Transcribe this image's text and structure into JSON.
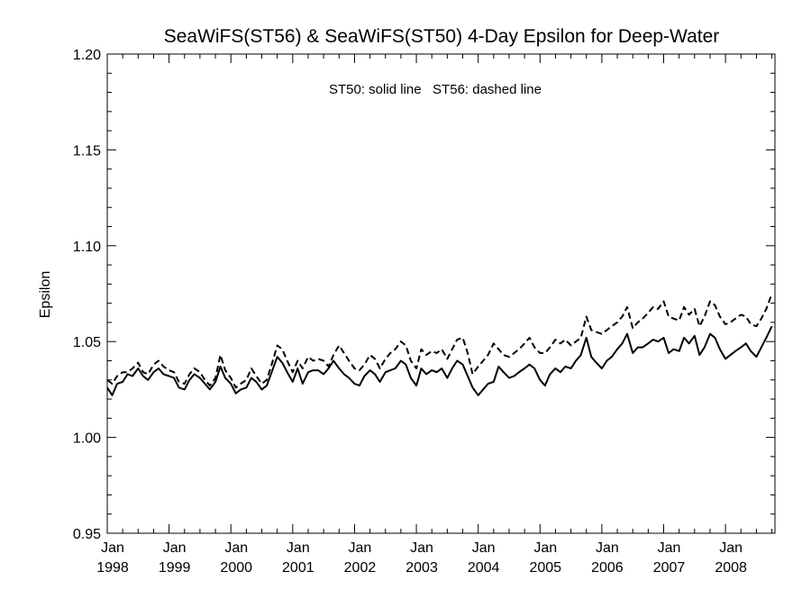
{
  "chart_data": {
    "type": "line",
    "title": "SeaWiFS(ST56) & SeaWiFS(ST50) 4-Day Epsilon for Deep-Water",
    "annotation": "ST50: solid line   ST56: dashed line",
    "xlabel": "",
    "ylabel": "Epsilon",
    "xlim": [
      1998.0,
      2008.8
    ],
    "ylim": [
      0.95,
      1.2
    ],
    "y_ticks": [
      "0.95",
      "1.00",
      "1.05",
      "1.10",
      "1.15",
      "1.20"
    ],
    "x_ticks": [
      {
        "month": "Jan",
        "year": "1998",
        "value": 1998.0
      },
      {
        "month": "Jan",
        "year": "1999",
        "value": 1999.0
      },
      {
        "month": "Jan",
        "year": "2000",
        "value": 2000.0
      },
      {
        "month": "Jan",
        "year": "2001",
        "value": 2001.0
      },
      {
        "month": "Jan",
        "year": "2002",
        "value": 2002.0
      },
      {
        "month": "Jan",
        "year": "2003",
        "value": 2003.0
      },
      {
        "month": "Jan",
        "year": "2004",
        "value": 2004.0
      },
      {
        "month": "Jan",
        "year": "2005",
        "value": 2005.0
      },
      {
        "month": "Jan",
        "year": "2006",
        "value": 2006.0
      },
      {
        "month": "Jan",
        "year": "2007",
        "value": 2007.0
      },
      {
        "month": "Jan",
        "year": "2008",
        "value": 2008.0
      }
    ],
    "series": [
      {
        "name": "ST50",
        "style": "solid",
        "x": [
          1998.0,
          1998.08,
          1998.16,
          1998.25,
          1998.33,
          1998.41,
          1998.5,
          1998.58,
          1998.66,
          1998.75,
          1998.83,
          1998.91,
          1999.0,
          1999.08,
          1999.16,
          1999.25,
          1999.33,
          1999.41,
          1999.5,
          1999.58,
          1999.66,
          1999.75,
          1999.83,
          1999.91,
          2000.0,
          2000.08,
          2000.16,
          2000.25,
          2000.33,
          2000.41,
          2000.5,
          2000.58,
          2000.66,
          2000.75,
          2000.83,
          2000.91,
          2001.0,
          2001.08,
          2001.16,
          2001.25,
          2001.33,
          2001.41,
          2001.5,
          2001.58,
          2001.66,
          2001.75,
          2001.83,
          2001.91,
          2002.0,
          2002.08,
          2002.16,
          2002.25,
          2002.33,
          2002.41,
          2002.5,
          2002.58,
          2002.66,
          2002.75,
          2002.83,
          2002.91,
          2003.0,
          2003.08,
          2003.16,
          2003.25,
          2003.33,
          2003.41,
          2003.5,
          2003.58,
          2003.66,
          2003.75,
          2003.83,
          2003.91,
          2004.0,
          2004.08,
          2004.16,
          2004.25,
          2004.33,
          2004.41,
          2004.5,
          2004.58,
          2004.66,
          2004.75,
          2004.83,
          2004.91,
          2005.0,
          2005.08,
          2005.16,
          2005.25,
          2005.33,
          2005.41,
          2005.5,
          2005.58,
          2005.66,
          2005.75,
          2005.83,
          2005.91,
          2006.0,
          2006.08,
          2006.16,
          2006.25,
          2006.33,
          2006.41,
          2006.5,
          2006.58,
          2006.66,
          2006.75,
          2006.83,
          2006.91,
          2007.0,
          2007.08,
          2007.16,
          2007.25,
          2007.33,
          2007.41,
          2007.5,
          2007.58,
          2007.66,
          2007.75,
          2007.83,
          2007.91,
          2008.0,
          2008.08,
          2008.16,
          2008.25,
          2008.33,
          2008.41,
          2008.5,
          2008.58,
          2008.66,
          2008.75
        ],
        "y": [
          1.026,
          1.022,
          1.028,
          1.029,
          1.033,
          1.032,
          1.036,
          1.032,
          1.03,
          1.034,
          1.036,
          1.033,
          1.032,
          1.031,
          1.026,
          1.025,
          1.03,
          1.033,
          1.031,
          1.028,
          1.025,
          1.029,
          1.037,
          1.031,
          1.028,
          1.023,
          1.025,
          1.026,
          1.031,
          1.029,
          1.025,
          1.027,
          1.034,
          1.042,
          1.039,
          1.034,
          1.029,
          1.036,
          1.028,
          1.034,
          1.035,
          1.035,
          1.033,
          1.036,
          1.04,
          1.036,
          1.033,
          1.031,
          1.028,
          1.027,
          1.032,
          1.035,
          1.033,
          1.029,
          1.034,
          1.035,
          1.036,
          1.04,
          1.038,
          1.031,
          1.027,
          1.036,
          1.033,
          1.035,
          1.034,
          1.036,
          1.031,
          1.036,
          1.04,
          1.038,
          1.032,
          1.026,
          1.022,
          1.025,
          1.028,
          1.029,
          1.037,
          1.034,
          1.031,
          1.032,
          1.034,
          1.036,
          1.038,
          1.036,
          1.03,
          1.027,
          1.033,
          1.036,
          1.034,
          1.037,
          1.036,
          1.04,
          1.043,
          1.052,
          1.042,
          1.039,
          1.036,
          1.04,
          1.042,
          1.046,
          1.049,
          1.054,
          1.044,
          1.047,
          1.047,
          1.049,
          1.051,
          1.05,
          1.052,
          1.044,
          1.046,
          1.045,
          1.052,
          1.049,
          1.053,
          1.043,
          1.047,
          1.054,
          1.052,
          1.046,
          1.041,
          1.043,
          1.045,
          1.047,
          1.049,
          1.045,
          1.042,
          1.047,
          1.052,
          1.058
        ]
      },
      {
        "name": "ST56",
        "style": "dashed",
        "x": [
          1998.0,
          1998.08,
          1998.16,
          1998.25,
          1998.33,
          1998.41,
          1998.5,
          1998.58,
          1998.66,
          1998.75,
          1998.83,
          1998.91,
          1999.0,
          1999.08,
          1999.16,
          1999.25,
          1999.33,
          1999.41,
          1999.5,
          1999.58,
          1999.66,
          1999.75,
          1999.83,
          1999.91,
          2000.0,
          2000.08,
          2000.16,
          2000.25,
          2000.33,
          2000.41,
          2000.5,
          2000.58,
          2000.66,
          2000.75,
          2000.83,
          2000.91,
          2001.0,
          2001.08,
          2001.16,
          2001.25,
          2001.33,
          2001.41,
          2001.5,
          2001.58,
          2001.66,
          2001.75,
          2001.83,
          2001.91,
          2002.0,
          2002.08,
          2002.16,
          2002.25,
          2002.33,
          2002.41,
          2002.5,
          2002.58,
          2002.66,
          2002.75,
          2002.83,
          2002.91,
          2003.0,
          2003.08,
          2003.16,
          2003.25,
          2003.33,
          2003.41,
          2003.5,
          2003.58,
          2003.66,
          2003.75,
          2003.83,
          2003.91,
          2004.0,
          2004.08,
          2004.16,
          2004.25,
          2004.33,
          2004.41,
          2004.5,
          2004.58,
          2004.66,
          2004.75,
          2004.83,
          2004.91,
          2005.0,
          2005.08,
          2005.16,
          2005.25,
          2005.33,
          2005.41,
          2005.5,
          2005.58,
          2005.66,
          2005.75,
          2005.83,
          2005.91,
          2006.0,
          2006.08,
          2006.16,
          2006.25,
          2006.33,
          2006.41,
          2006.5,
          2006.58,
          2006.66,
          2006.75,
          2006.83,
          2006.91,
          2007.0,
          2007.08,
          2007.16,
          2007.25,
          2007.33,
          2007.41,
          2007.5,
          2007.58,
          2007.66,
          2007.75,
          2007.83,
          2007.91,
          2008.0,
          2008.08,
          2008.16,
          2008.25,
          2008.33,
          2008.41,
          2008.5,
          2008.58,
          2008.66,
          2008.75
        ],
        "y": [
          1.03,
          1.028,
          1.032,
          1.034,
          1.034,
          1.036,
          1.039,
          1.034,
          1.033,
          1.038,
          1.04,
          1.037,
          1.035,
          1.034,
          1.029,
          1.028,
          1.033,
          1.036,
          1.034,
          1.03,
          1.027,
          1.031,
          1.043,
          1.035,
          1.031,
          1.026,
          1.028,
          1.03,
          1.036,
          1.032,
          1.028,
          1.03,
          1.038,
          1.048,
          1.046,
          1.04,
          1.034,
          1.04,
          1.036,
          1.042,
          1.04,
          1.041,
          1.04,
          1.037,
          1.043,
          1.048,
          1.044,
          1.04,
          1.036,
          1.035,
          1.038,
          1.043,
          1.041,
          1.036,
          1.041,
          1.044,
          1.046,
          1.05,
          1.048,
          1.04,
          1.036,
          1.046,
          1.043,
          1.045,
          1.044,
          1.046,
          1.041,
          1.046,
          1.051,
          1.052,
          1.044,
          1.033,
          1.037,
          1.04,
          1.043,
          1.049,
          1.046,
          1.043,
          1.042,
          1.044,
          1.046,
          1.049,
          1.052,
          1.047,
          1.044,
          1.044,
          1.047,
          1.051,
          1.049,
          1.051,
          1.048,
          1.05,
          1.052,
          1.063,
          1.056,
          1.055,
          1.054,
          1.056,
          1.058,
          1.06,
          1.063,
          1.068,
          1.057,
          1.06,
          1.062,
          1.065,
          1.068,
          1.067,
          1.071,
          1.063,
          1.062,
          1.061,
          1.068,
          1.064,
          1.067,
          1.058,
          1.063,
          1.071,
          1.069,
          1.063,
          1.059,
          1.06,
          1.062,
          1.064,
          1.063,
          1.059,
          1.058,
          1.062,
          1.067,
          1.075
        ]
      }
    ]
  }
}
